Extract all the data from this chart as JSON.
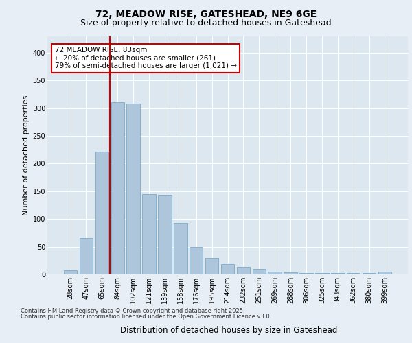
{
  "title_line1": "72, MEADOW RISE, GATESHEAD, NE9 6GE",
  "title_line2": "Size of property relative to detached houses in Gateshead",
  "xlabel": "Distribution of detached houses by size in Gateshead",
  "ylabel": "Number of detached properties",
  "categories": [
    "28sqm",
    "47sqm",
    "65sqm",
    "84sqm",
    "102sqm",
    "121sqm",
    "139sqm",
    "158sqm",
    "176sqm",
    "195sqm",
    "214sqm",
    "232sqm",
    "251sqm",
    "269sqm",
    "288sqm",
    "306sqm",
    "325sqm",
    "343sqm",
    "362sqm",
    "380sqm",
    "399sqm"
  ],
  "bar_values": [
    8,
    65,
    222,
    310,
    308,
    145,
    143,
    93,
    49,
    30,
    19,
    13,
    10,
    5,
    4,
    3,
    3,
    3,
    3,
    3,
    5
  ],
  "bar_color": "#aec6db",
  "bar_edge_color": "#7aaac8",
  "ann_box_edge_color": "#cc0000",
  "ann_line_color": "#cc0000",
  "annotation_text_line1": "72 MEADOW RISE: 83sqm",
  "annotation_text_line2": "← 20% of detached houses are smaller (261)",
  "annotation_text_line3": "79% of semi-detached houses are larger (1,021) →",
  "red_line_x": 2.5,
  "ylim": [
    0,
    430
  ],
  "yticks": [
    0,
    50,
    100,
    150,
    200,
    250,
    300,
    350,
    400
  ],
  "footer_line1": "Contains HM Land Registry data © Crown copyright and database right 2025.",
  "footer_line2": "Contains public sector information licensed under the Open Government Licence v3.0.",
  "background_color": "#e8eef5",
  "plot_bg_color": "#dce7f0",
  "grid_color": "#ffffff",
  "title1_fontsize": 10,
  "title2_fontsize": 9,
  "ylabel_fontsize": 8,
  "xlabel_fontsize": 8.5,
  "tick_fontsize": 7,
  "ann_fontsize": 7.5,
  "footer_fontsize": 6
}
